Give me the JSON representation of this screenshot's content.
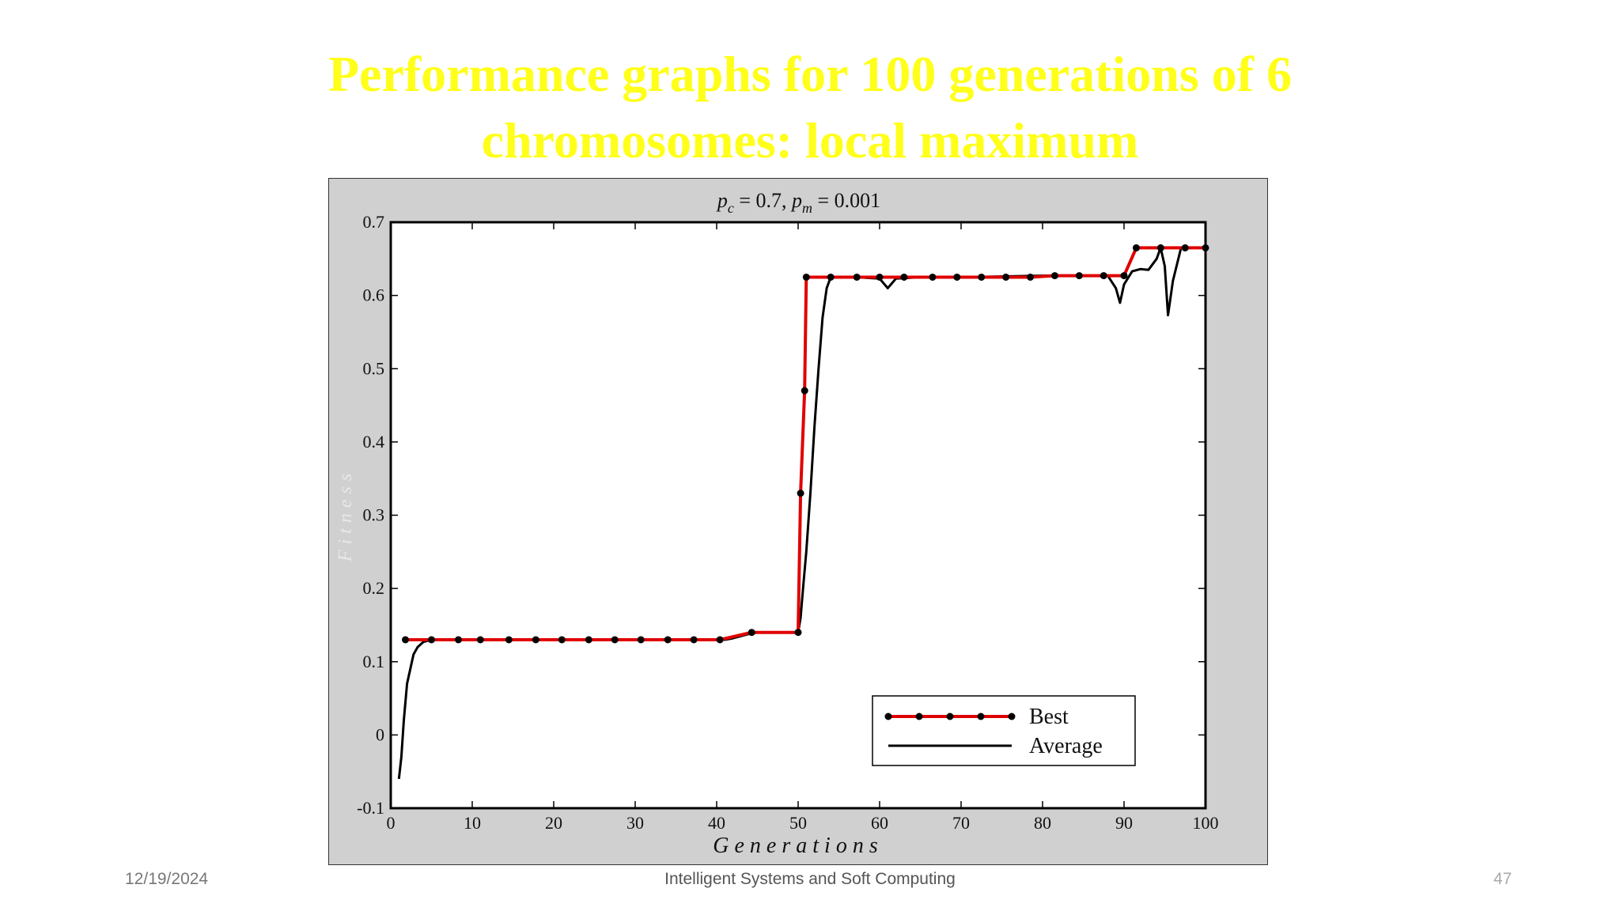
{
  "slide": {
    "title_line1": "Performance graphs for 100 generations of 6",
    "title_line2": "chromosomes: local maximum",
    "footer_date": "12/19/2024",
    "footer_center": "Intelligent Systems and Soft Computing",
    "page_number": "47",
    "title_color": "#ffff19"
  },
  "chart_data": {
    "type": "line",
    "title_parts": {
      "pc_sym": "p",
      "pc_sub": "c",
      "pc_val": " = 0.7,  ",
      "pm_sym": "p",
      "pm_sub": "m",
      "pm_val": " = 0.001"
    },
    "xlabel": "Generations",
    "ylabel": "Fitness",
    "xlim": [
      0,
      100
    ],
    "ylim": [
      -0.1,
      0.7
    ],
    "xticks": [
      0,
      10,
      20,
      30,
      40,
      50,
      60,
      70,
      80,
      90,
      100
    ],
    "yticks": [
      -0.1,
      0,
      0.1,
      0.2,
      0.3,
      0.4,
      0.5,
      0.6,
      0.7
    ],
    "ytick_labels": [
      "-0.1",
      "0",
      "0.1",
      "0.2",
      "0.3",
      "0.4",
      "0.5",
      "0.6",
      "0.7"
    ],
    "legend": {
      "position": "bottom-right",
      "entries": [
        "Best",
        "Average"
      ]
    },
    "series": [
      {
        "name": "Best",
        "color": "#e00000",
        "marker": "dot",
        "x": [
          1.8,
          5,
          8.3,
          11,
          14.5,
          17.8,
          21,
          24.3,
          27.5,
          30.7,
          34,
          37.2,
          40.4,
          44.3,
          50,
          50.3,
          50.8,
          51,
          54,
          57.2,
          60,
          63,
          66.5,
          69.5,
          72.5,
          75.5,
          78.5,
          81.5,
          84.5,
          87.5,
          90,
          91.5,
          94.5,
          97.5,
          100
        ],
        "values": [
          0.13,
          0.13,
          0.13,
          0.13,
          0.13,
          0.13,
          0.13,
          0.13,
          0.13,
          0.13,
          0.13,
          0.13,
          0.13,
          0.14,
          0.14,
          0.33,
          0.47,
          0.625,
          0.625,
          0.625,
          0.625,
          0.625,
          0.625,
          0.625,
          0.625,
          0.625,
          0.625,
          0.627,
          0.627,
          0.627,
          0.627,
          0.665,
          0.665,
          0.665,
          0.665
        ]
      },
      {
        "name": "Average",
        "color": "#000000",
        "x": [
          1,
          1.3,
          1.6,
          2,
          2.4,
          2.8,
          3.3,
          4,
          5,
          10,
          20,
          30,
          41,
          42,
          43,
          44,
          45,
          49,
          50,
          50.3,
          50.6,
          51,
          51.5,
          52,
          52.5,
          53,
          53.5,
          54,
          57,
          60,
          61,
          62,
          65,
          70,
          80,
          88,
          89,
          89.5,
          90,
          91,
          92,
          93,
          94,
          94.5,
          95,
          95.4,
          96,
          97,
          100
        ],
        "values": [
          -0.06,
          -0.03,
          0.02,
          0.07,
          0.09,
          0.11,
          0.12,
          0.127,
          0.13,
          0.13,
          0.13,
          0.13,
          0.13,
          0.132,
          0.135,
          0.138,
          0.14,
          0.14,
          0.14,
          0.16,
          0.2,
          0.25,
          0.33,
          0.42,
          0.5,
          0.57,
          0.61,
          0.625,
          0.625,
          0.623,
          0.61,
          0.623,
          0.625,
          0.625,
          0.627,
          0.627,
          0.61,
          0.59,
          0.615,
          0.633,
          0.636,
          0.635,
          0.65,
          0.665,
          0.64,
          0.573,
          0.62,
          0.665,
          0.665
        ]
      }
    ],
    "grid": false
  }
}
